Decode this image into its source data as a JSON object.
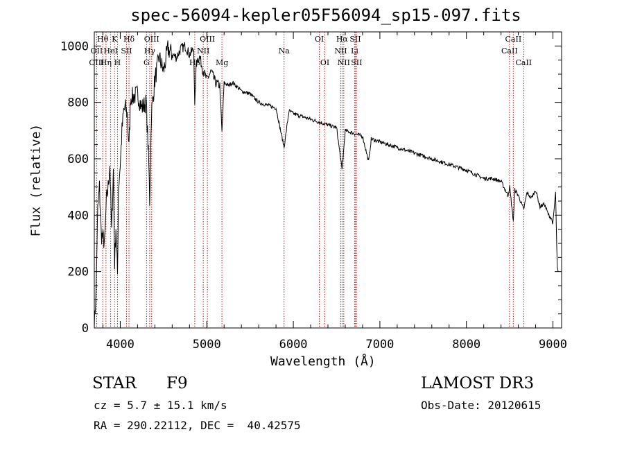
{
  "chart_data": {
    "type": "line",
    "title": "spec-56094-kepler05F56094_sp15-097.fits",
    "xlabel": "Wavelength (Å)",
    "ylabel": "Flux (relative)",
    "xlim": [
      3700,
      9100
    ],
    "ylim": [
      0,
      1050
    ],
    "xticks": [
      4000,
      5000,
      6000,
      7000,
      8000,
      9000
    ],
    "yticks": [
      0,
      200,
      400,
      600,
      800,
      1000
    ],
    "series": [
      {
        "name": "flux",
        "x": [
          3700,
          3720,
          3740,
          3760,
          3780,
          3800,
          3820,
          3840,
          3860,
          3880,
          3900,
          3920,
          3935,
          3950,
          3968,
          3980,
          4000,
          4020,
          4040,
          4060,
          4080,
          4101,
          4120,
          4150,
          4200,
          4250,
          4300,
          4330,
          4340,
          4360,
          4400,
          4450,
          4500,
          4550,
          4600,
          4650,
          4700,
          4750,
          4800,
          4850,
          4861,
          4880,
          4920,
          4950,
          5000,
          5050,
          5100,
          5150,
          5175,
          5200,
          5250,
          5300,
          5400,
          5500,
          5600,
          5700,
          5800,
          5893,
          5950,
          6000,
          6100,
          6200,
          6300,
          6400,
          6500,
          6563,
          6600,
          6700,
          6800,
          6870,
          6900,
          7000,
          7200,
          7400,
          7600,
          7800,
          8000,
          8200,
          8300,
          8400,
          8480,
          8500,
          8542,
          8560,
          8600,
          8662,
          8700,
          8750,
          8800,
          8850,
          8900,
          8950,
          8980,
          9000,
          9030,
          9050,
          9060
        ],
        "y": [
          0,
          130,
          420,
          500,
          330,
          320,
          300,
          450,
          500,
          580,
          340,
          560,
          230,
          360,
          190,
          500,
          580,
          700,
          770,
          780,
          760,
          640,
          820,
          820,
          830,
          780,
          800,
          580,
          450,
          760,
          880,
          960,
          910,
          990,
          970,
          960,
          990,
          1000,
          970,
          990,
          780,
          950,
          960,
          920,
          880,
          910,
          870,
          860,
          690,
          870,
          860,
          870,
          840,
          830,
          800,
          790,
          780,
          640,
          770,
          760,
          750,
          740,
          730,
          720,
          710,
          560,
          700,
          690,
          680,
          590,
          670,
          660,
          640,
          620,
          600,
          580,
          560,
          530,
          530,
          520,
          470,
          500,
          380,
          490,
          470,
          420,
          480,
          460,
          490,
          430,
          440,
          400,
          390,
          370,
          480,
          210,
          200
        ]
      }
    ],
    "lines": [
      {
        "label": "Hθ",
        "x": 3797,
        "row": 1
      },
      {
        "label": "OII",
        "x": 3727,
        "row": 2
      },
      {
        "label": "OIII",
        "x": 3727,
        "row": 3
      },
      {
        "label": "K",
        "x": 3934,
        "row": 1
      },
      {
        "label": "HeI",
        "x": 3889,
        "row": 2
      },
      {
        "label": "Hη",
        "x": 3835,
        "row": 3
      },
      {
        "label": "Hδ",
        "x": 4101,
        "row": 1
      },
      {
        "label": "SII",
        "x": 4072,
        "row": 2
      },
      {
        "label": "H",
        "x": 3968,
        "row": 3
      },
      {
        "label": "OIII",
        "x": 4363,
        "row": 1
      },
      {
        "label": "Hγ",
        "x": 4340,
        "row": 2
      },
      {
        "label": "G",
        "x": 4304,
        "row": 3
      },
      {
        "label": "OIII",
        "x": 5007,
        "row": 1
      },
      {
        "label": "NII",
        "x": 4959,
        "row": 2
      },
      {
        "label": "Hβ",
        "x": 4861,
        "row": 3
      },
      {
        "label": "Mg",
        "x": 5175,
        "row": 3
      },
      {
        "label": "Na",
        "x": 5893,
        "row": 2
      },
      {
        "label": "OI",
        "x": 6300,
        "row": 1
      },
      {
        "label": "OI",
        "x": 6364,
        "row": 3
      },
      {
        "label": "Hα",
        "x": 6563,
        "row": 1
      },
      {
        "label": "SII",
        "x": 6716,
        "row": 1
      },
      {
        "label": "NII",
        "x": 6548,
        "row": 2
      },
      {
        "label": "Li",
        "x": 6708,
        "row": 2
      },
      {
        "label": "NII",
        "x": 6583,
        "row": 3
      },
      {
        "label": "SII",
        "x": 6731,
        "row": 3
      },
      {
        "label": "CaII",
        "x": 8542,
        "row": 1
      },
      {
        "label": "CaII",
        "x": 8498,
        "row": 2
      },
      {
        "label": "CaII",
        "x": 8662,
        "row": 3
      }
    ]
  },
  "info": {
    "class_label": "STAR",
    "subclass": "F9",
    "release": "LAMOST DR3",
    "cz": "cz = 5.7 ± 15.1 km/s",
    "obs_date": "Obs-Date: 20120615",
    "radec": "RA = 290.22112, DEC =  40.42575"
  },
  "colors": {
    "line": "#000000",
    "marker": "#b22222"
  }
}
